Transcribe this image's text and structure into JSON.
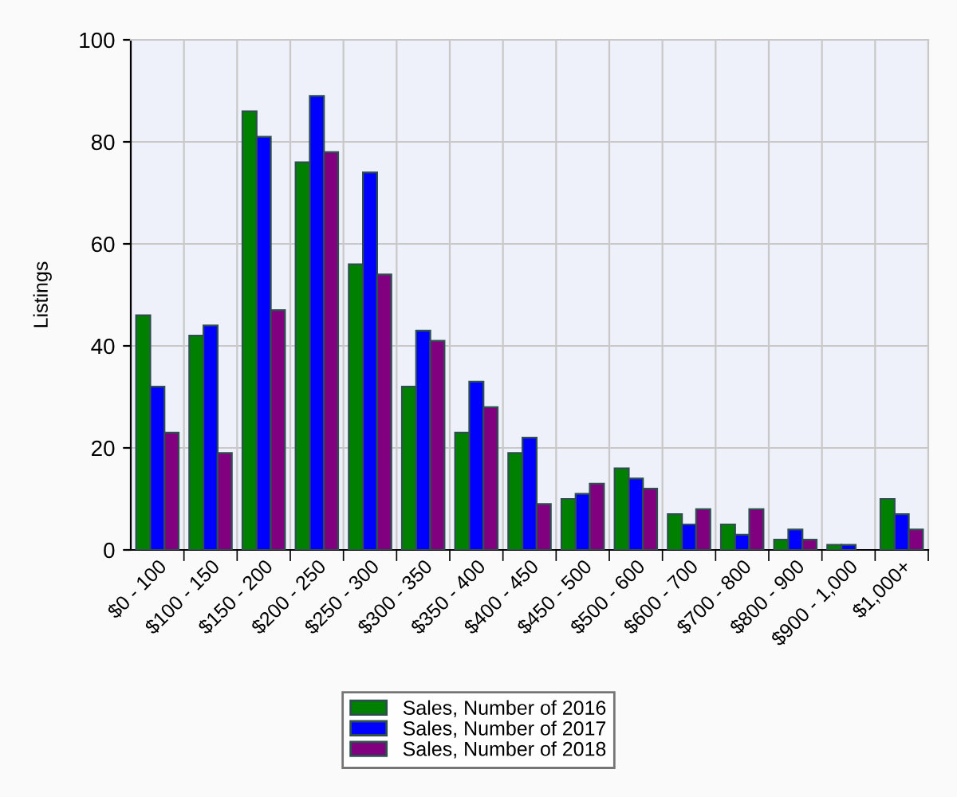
{
  "chart_data": {
    "type": "bar",
    "ylabel": "Listings",
    "categories": [
      "$0 - 100",
      "$100 - 150",
      "$150 - 200",
      "$200 - 250",
      "$250 - 300",
      "$300 - 350",
      "$350 - 400",
      "$400 - 450",
      "$450 - 500",
      "$500 - 600",
      "$600 - 700",
      "$700 - 800",
      "$800 - 900",
      "$900 - 1,000",
      "$1,000+"
    ],
    "series": [
      {
        "name": "Sales, Number of 2016",
        "color": "#008000",
        "values": [
          46,
          42,
          86,
          76,
          56,
          32,
          23,
          19,
          10,
          16,
          7,
          5,
          2,
          1,
          10
        ]
      },
      {
        "name": "Sales, Number of 2017",
        "color": "#0000ff",
        "values": [
          32,
          44,
          81,
          89,
          74,
          43,
          33,
          22,
          11,
          14,
          5,
          3,
          4,
          1,
          7
        ]
      },
      {
        "name": "Sales, Number of 2018",
        "color": "#800080",
        "values": [
          23,
          19,
          47,
          78,
          54,
          41,
          28,
          9,
          13,
          12,
          8,
          8,
          2,
          null,
          4
        ]
      }
    ],
    "ylim": [
      0,
      100
    ],
    "yticks": [
      0,
      20,
      40,
      60,
      80,
      100
    ],
    "grid": true,
    "legend": "bottom"
  }
}
